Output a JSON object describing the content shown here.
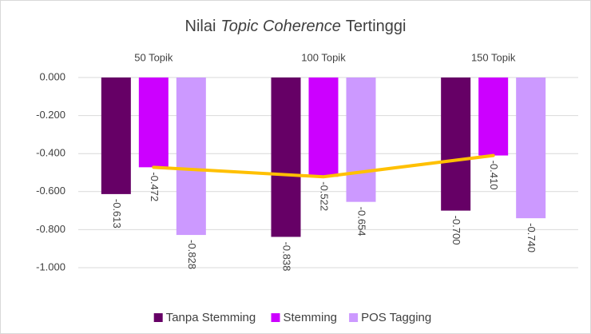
{
  "chart_data": {
    "type": "bar",
    "title": [
      "Nilai",
      "Topic Coherence",
      "Tertinggi"
    ],
    "categories": [
      "50 Topik",
      "100 Topik",
      "150 Topik"
    ],
    "series": [
      {
        "name": "Tanpa Stemming",
        "color": "#660066",
        "values": [
          -0.613,
          -0.838,
          -0.7
        ],
        "value_labels": [
          "-0.613",
          "-0.838",
          "-0.700"
        ]
      },
      {
        "name": "Stemming",
        "color": "#cc00ff",
        "values": [
          -0.472,
          -0.522,
          -0.41
        ],
        "value_labels": [
          "-0.472",
          "-0.522",
          "-0.410"
        ]
      },
      {
        "name": "POS Tagging",
        "color": "#cc99ff",
        "values": [
          -0.828,
          -0.654,
          -0.74
        ],
        "value_labels": [
          "-0.828",
          "-0.654",
          "-0.740"
        ]
      }
    ],
    "line_series": 1,
    "line_color": "#ffc000",
    "ylim": [
      -1,
      0
    ],
    "yticks": [
      {
        "value": 0,
        "label": "0.000"
      },
      {
        "value": -0.2,
        "label": "-0.200"
      },
      {
        "value": -0.4,
        "label": "-0.400"
      },
      {
        "value": -0.6,
        "label": "-0.600"
      },
      {
        "value": -0.8,
        "label": "-0.800"
      },
      {
        "value": -1,
        "label": "-1.000"
      }
    ],
    "grid": true,
    "legend": "bottom"
  }
}
